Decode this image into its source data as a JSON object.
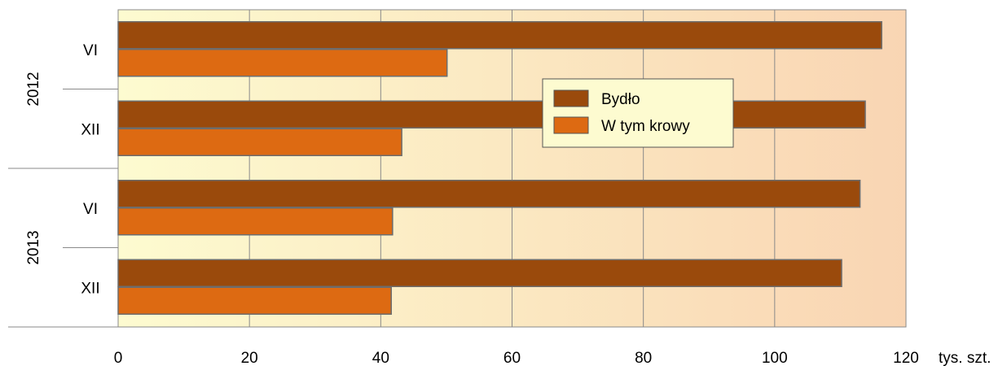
{
  "chart_data": {
    "type": "bar",
    "orientation": "horizontal",
    "groups": [
      {
        "label": "2012",
        "categories": [
          "VI",
          "XII"
        ]
      },
      {
        "label": "2013",
        "categories": [
          "VI",
          "XII"
        ]
      }
    ],
    "categories": [
      "2012 VI",
      "2012 XII",
      "2013 VI",
      "2013 XII"
    ],
    "series": [
      {
        "name": "Bydło",
        "values": [
          116.3,
          113.8,
          113.0,
          110.2
        ],
        "color": "#9a4a0c"
      },
      {
        "name": "W tym krowy",
        "values": [
          50.1,
          43.2,
          41.8,
          41.6
        ],
        "color": "#dd6a12"
      }
    ],
    "x_ticks": [
      "0",
      "20",
      "40",
      "60",
      "80",
      "100",
      "120"
    ],
    "x_unit": "tys. szt.",
    "xlim": [
      0,
      120
    ],
    "grid": true,
    "legend_position": "top-right",
    "background_gradient": [
      "#fdfbd0",
      "#f9d5b3"
    ]
  }
}
